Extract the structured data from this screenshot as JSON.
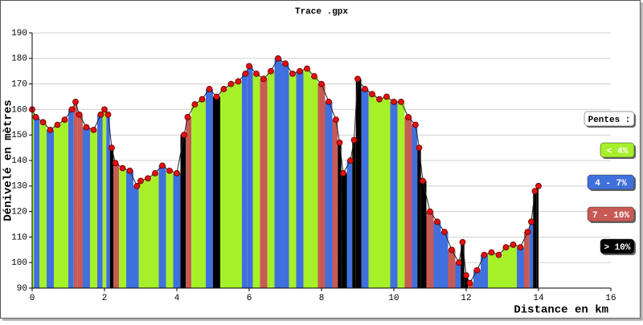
{
  "chart_data": {
    "type": "elevation-profile",
    "title": "Trace .gpx",
    "xlabel": "Distance en km",
    "ylabel": "Dénivelé en mètres",
    "xlim": [
      0,
      16
    ],
    "ylim": [
      90,
      190
    ],
    "xticks": [
      0,
      2,
      4,
      6,
      8,
      10,
      12,
      14,
      16
    ],
    "yticks": [
      90,
      100,
      110,
      120,
      130,
      140,
      150,
      160,
      170,
      180,
      190
    ],
    "grid": true,
    "point_color": "#e01010",
    "legend": {
      "title": "Pentes :",
      "position": "right",
      "items": [
        {
          "name": "< 4%",
          "color": "#a6f02a"
        },
        {
          "name": "4 - 7%",
          "color": "#4070dd"
        },
        {
          "name": "7 - 10%",
          "color": "#c85a55"
        },
        {
          "name": "> 10%",
          "color": "#000000"
        }
      ]
    },
    "x": [
      0,
      0.1,
      0.3,
      0.5,
      0.7,
      0.9,
      1.1,
      1.2,
      1.3,
      1.5,
      1.7,
      1.9,
      2.0,
      2.1,
      2.2,
      2.3,
      2.5,
      2.7,
      2.9,
      3.0,
      3.2,
      3.4,
      3.6,
      3.8,
      4.0,
      4.2,
      4.3,
      4.5,
      4.7,
      4.9,
      5.1,
      5.3,
      5.5,
      5.7,
      5.9,
      6.0,
      6.2,
      6.4,
      6.6,
      6.8,
      7.0,
      7.2,
      7.4,
      7.6,
      7.8,
      8.0,
      8.2,
      8.4,
      8.5,
      8.6,
      8.8,
      8.9,
      9.0,
      9.2,
      9.4,
      9.6,
      9.8,
      10.0,
      10.2,
      10.4,
      10.6,
      10.7,
      10.8,
      11.0,
      11.2,
      11.4,
      11.6,
      11.8,
      11.9,
      12.0,
      12.1,
      12.3,
      12.5,
      12.7,
      12.9,
      13.1,
      13.3,
      13.5,
      13.7,
      13.8,
      13.9,
      14.0
    ],
    "values": [
      160,
      157,
      155,
      152,
      154,
      156,
      160,
      163,
      158,
      153,
      152,
      158,
      160,
      158,
      145,
      139,
      137,
      136,
      130,
      132,
      133,
      135,
      138,
      136,
      135,
      150,
      157,
      162,
      164,
      168,
      165,
      168,
      170,
      171,
      174,
      177,
      174,
      172,
      175,
      180,
      178,
      174,
      175,
      176,
      173,
      170,
      163,
      156,
      147,
      135,
      140,
      148,
      172,
      168,
      166,
      164,
      165,
      163,
      163,
      157,
      154,
      145,
      132,
      120,
      116,
      112,
      105,
      100,
      108,
      95,
      92,
      97,
      103,
      104,
      103,
      106,
      107,
      106,
      112,
      116,
      128,
      130
    ],
    "slope_class": [
      0,
      1,
      0,
      1,
      0,
      0,
      1,
      2,
      2,
      1,
      0,
      1,
      0,
      1,
      3,
      2,
      0,
      1,
      1,
      0,
      0,
      0,
      1,
      0,
      1,
      3,
      2,
      0,
      0,
      1,
      3,
      0,
      0,
      0,
      1,
      1,
      0,
      2,
      0,
      1,
      1,
      0,
      1,
      0,
      0,
      2,
      1,
      2,
      3,
      3,
      1,
      3,
      3,
      1,
      0,
      0,
      0,
      1,
      0,
      2,
      1,
      3,
      3,
      2,
      1,
      1,
      2,
      1,
      3,
      3,
      2,
      1,
      1,
      0,
      0,
      0,
      0,
      1,
      2,
      1,
      3,
      3
    ]
  }
}
